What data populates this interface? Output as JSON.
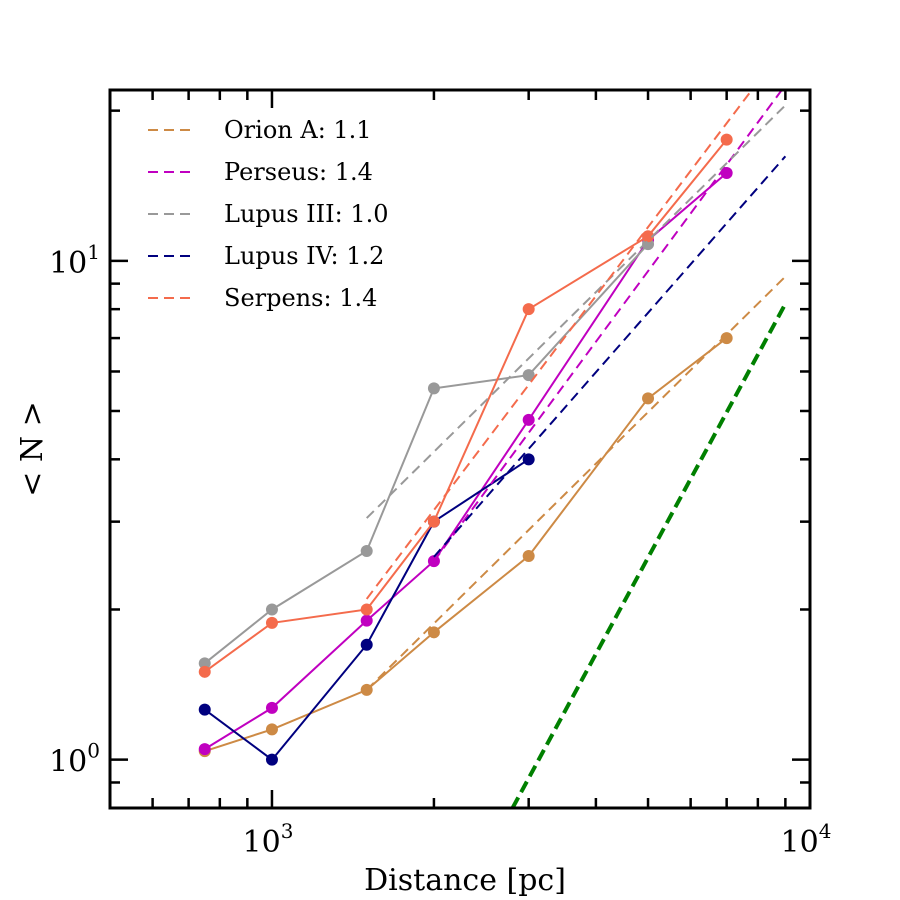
{
  "chart_data": {
    "type": "line",
    "x_scale": "log",
    "y_scale": "log",
    "xlim": [
      500,
      10000
    ],
    "ylim": [
      0.8,
      22
    ],
    "xlabel": "Distance [pc]",
    "ylabel": "< N >",
    "x_ticks": [
      {
        "value": 1000,
        "base": "10",
        "exp": "3"
      },
      {
        "value": 10000,
        "base": "10",
        "exp": "4"
      }
    ],
    "y_ticks": [
      {
        "value": 1,
        "base": "10",
        "exp": "0"
      },
      {
        "value": 10,
        "base": "10",
        "exp": "1"
      }
    ],
    "legend_position": "top-left",
    "series": [
      {
        "name": "Orion A",
        "legend_label": "Orion A: 1.1",
        "color": "#cd8a45",
        "x": [
          750,
          1000,
          1500,
          2000,
          3000,
          5000,
          7000
        ],
        "y": [
          1.04,
          1.15,
          1.38,
          1.8,
          2.56,
          5.3,
          7.0
        ],
        "fit": {
          "x": [
            1500,
            9000
          ],
          "y": [
            1.38,
            9.3
          ]
        }
      },
      {
        "name": "Perseus",
        "legend_label": "Perseus: 1.4",
        "color": "#c000c0",
        "x": [
          750,
          1000,
          1500,
          2000,
          3000,
          5000,
          7000
        ],
        "y": [
          1.05,
          1.27,
          1.9,
          2.5,
          4.8,
          11.0,
          15.0
        ],
        "fit": {
          "x": [
            2000,
            9000
          ],
          "y": [
            2.5,
            22.5
          ]
        }
      },
      {
        "name": "Lupus III",
        "legend_label": "Lupus III: 1.0",
        "color": "#999999",
        "x": [
          750,
          1000,
          1500,
          2000,
          3000,
          5000
        ],
        "y": [
          1.56,
          2.0,
          2.62,
          5.55,
          5.9,
          10.8
        ],
        "fit": {
          "x": [
            1500,
            9000
          ],
          "y": [
            3.05,
            20.5
          ]
        }
      },
      {
        "name": "Lupus IV",
        "legend_label": "Lupus IV: 1.2",
        "color": "#00007f",
        "x": [
          750,
          1000,
          1500,
          2000,
          3000
        ],
        "y": [
          1.26,
          1.0,
          1.7,
          3.0,
          4.0
        ],
        "fit": {
          "x": [
            2000,
            9000
          ],
          "y": [
            2.55,
            16.2
          ]
        }
      },
      {
        "name": "Serpens",
        "legend_label": "Serpens: 1.4",
        "color": "#f46b4c",
        "x": [
          750,
          1000,
          1500,
          2000,
          3000,
          5000,
          7000
        ],
        "y": [
          1.5,
          1.88,
          2.0,
          3.0,
          8.0,
          11.2,
          17.5
        ],
        "fit": {
          "x": [
            1500,
            9000
          ],
          "y": [
            2.1,
            27.0
          ]
        }
      }
    ],
    "reference_line": {
      "color": "#008000",
      "style": "dashed-thick",
      "x": [
        2800,
        9000
      ],
      "y": [
        0.8,
        8.2
      ]
    }
  }
}
